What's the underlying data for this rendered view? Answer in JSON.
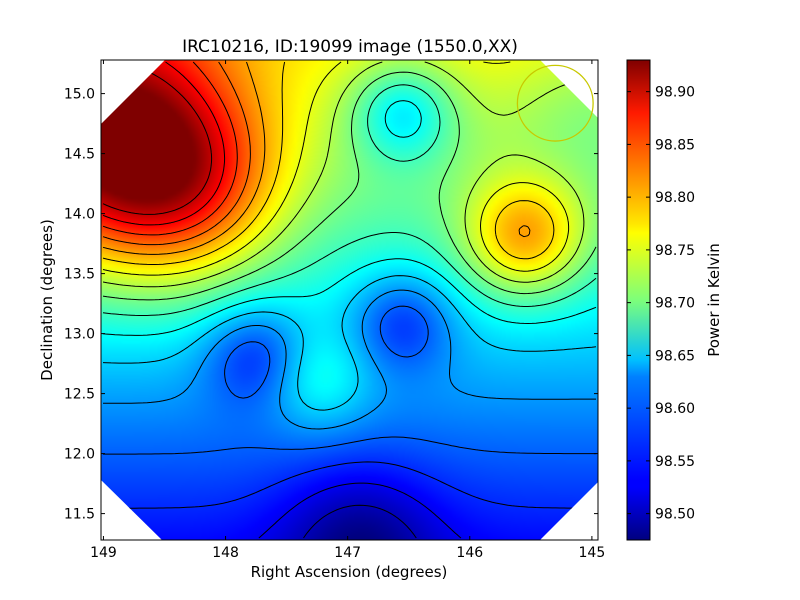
{
  "chart_data": {
    "type": "heatmap",
    "title": "IRC10216, ID:19099 image (1550.0,XX)",
    "xlabel": "Right Ascension (degrees)",
    "ylabel": "Declination (degrees)",
    "xlim": [
      149.02,
      144.95
    ],
    "ylim": [
      11.28,
      15.28
    ],
    "x_ticks": [
      {
        "value": 149,
        "label": "149"
      },
      {
        "value": 148,
        "label": "148"
      },
      {
        "value": 147,
        "label": "147"
      },
      {
        "value": 146,
        "label": "146"
      },
      {
        "value": 145,
        "label": "145"
      }
    ],
    "y_ticks": [
      {
        "value": 11.5,
        "label": "11.5"
      },
      {
        "value": 12.0,
        "label": "12.0"
      },
      {
        "value": 12.5,
        "label": "12.5"
      },
      {
        "value": 13.0,
        "label": "13.0"
      },
      {
        "value": 13.5,
        "label": "13.5"
      },
      {
        "value": 14.0,
        "label": "14.0"
      },
      {
        "value": 14.5,
        "label": "14.5"
      },
      {
        "value": 15.0,
        "label": "15.0"
      }
    ],
    "colorbar": {
      "label": "Power in Kelvin",
      "range": [
        98.475,
        98.93
      ],
      "colormap": "jet",
      "ticks": [
        {
          "value": 98.5,
          "label": "98.50"
        },
        {
          "value": 98.55,
          "label": "98.55"
        },
        {
          "value": 98.6,
          "label": "98.60"
        },
        {
          "value": 98.65,
          "label": "98.65"
        },
        {
          "value": 98.7,
          "label": "98.70"
        },
        {
          "value": 98.75,
          "label": "98.75"
        },
        {
          "value": 98.8,
          "label": "98.80"
        },
        {
          "value": 98.85,
          "label": "98.85"
        },
        {
          "value": 98.9,
          "label": "98.90"
        }
      ]
    },
    "map_features": [
      {
        "kind": "max",
        "ra": 149.0,
        "dec": 14.6,
        "value": 98.93
      },
      {
        "kind": "high",
        "ra": 148.3,
        "dec": 14.2,
        "value": 98.81
      },
      {
        "kind": "high",
        "ra": 145.55,
        "dec": 13.8,
        "value": 98.8
      },
      {
        "kind": "high",
        "ra": 145.0,
        "dec": 14.9,
        "value": 98.71
      },
      {
        "kind": "low",
        "ra": 147.75,
        "dec": 12.82,
        "value": 98.55
      },
      {
        "kind": "low",
        "ra": 146.55,
        "dec": 13.1,
        "value": 98.56
      },
      {
        "kind": "min",
        "ra": 146.9,
        "dec": 11.3,
        "value": 98.475
      },
      {
        "kind": "local-high",
        "ra": 147.25,
        "dec": 12.6,
        "value": 98.66
      },
      {
        "kind": "local-low",
        "ra": 146.55,
        "dec": 14.85,
        "value": 98.64
      }
    ],
    "beam_circle": {
      "ra": 145.3,
      "dec": 14.92,
      "radius_deg": 0.31,
      "color": "#c8c800"
    },
    "footprint": "octagon",
    "contour_color": "#000000",
    "grid": false
  }
}
